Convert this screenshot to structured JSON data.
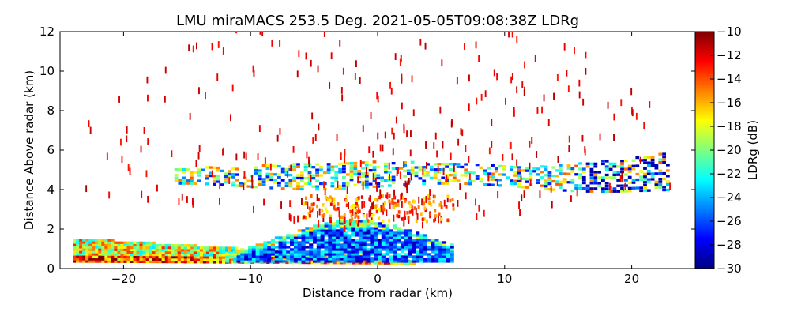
{
  "chart_data": {
    "type": "heatmap",
    "title": "LMU miraMACS 253.5 Deg. 2021-05-05T09:08:38Z  LDRg",
    "xlabel": "Distance from radar (km)",
    "ylabel": "Distance Above radar  (km)",
    "xlim": [
      -25,
      25
    ],
    "ylim": [
      0,
      12
    ],
    "x_ticks": [
      -20,
      -10,
      0,
      10,
      20
    ],
    "x_tick_labels": [
      "−20",
      "−10",
      "0",
      "10",
      "20"
    ],
    "y_ticks": [
      0,
      2,
      4,
      6,
      8,
      10,
      12
    ],
    "y_tick_labels": [
      "0",
      "2",
      "4",
      "6",
      "8",
      "10",
      "12"
    ],
    "colorbar": {
      "label": "LDRg (dB)",
      "range": [
        -30,
        -10
      ],
      "ticks": [
        -10,
        -12,
        -14,
        -16,
        -18,
        -20,
        -22,
        -24,
        -26,
        -28,
        -30
      ],
      "tick_labels": [
        "−10",
        "−12",
        "−14",
        "−16",
        "−18",
        "−20",
        "−22",
        "−24",
        "−26",
        "−28",
        "−30"
      ],
      "colormap": "jet"
    },
    "layers": [
      {
        "name": "near-surface precipitation band",
        "x": [
          -24,
          3
        ],
        "z_base": [
          0.3,
          0.2
        ],
        "z_top": [
          1.5,
          0.4
        ],
        "ldr_db": -20
      },
      {
        "name": "dense echo region around radar",
        "x": [
          -12,
          6
        ],
        "z": [
          0.2,
          2.4
        ],
        "ldr_db": -27
      },
      {
        "name": "mid-level cloud layer",
        "x": [
          -16,
          23
        ],
        "z": [
          3.5,
          6.2
        ],
        "ldr_db": -21
      },
      {
        "name": "sparse clutter / insects",
        "x": [
          -23,
          23
        ],
        "z": [
          1.5,
          12
        ],
        "ldr_db": -11
      }
    ]
  },
  "colors": {
    "axis": "#000000",
    "background": "#ffffff",
    "colormap_stops": [
      "#00007f",
      "#0000ff",
      "#007fff",
      "#00ffff",
      "#7fff7f",
      "#ffff00",
      "#ff7f00",
      "#ff0000",
      "#7f0000"
    ]
  }
}
